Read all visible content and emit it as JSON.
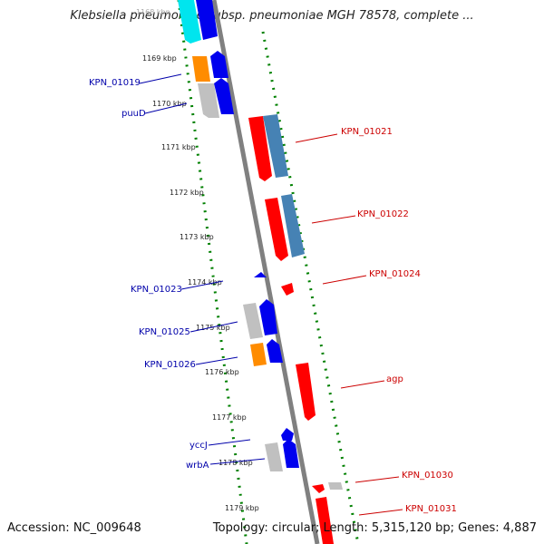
{
  "title": "Klebsiella pneumoniae subsp. pneumoniae MGH 78578, complete ...",
  "accession": "Accession: NC_009648",
  "summary": "Topology: circular; Length: 5,315,120 bp; Genes: 4,887",
  "colors": {
    "red": "#ff0000",
    "steelblue": "#4682b4",
    "blue": "#0000ee",
    "gray": "#c8c8c8",
    "orange": "#ff8c00",
    "cyan": "#00e5ee",
    "scale_green": "#008000",
    "label_red": "#cc0000",
    "label_blue": "#0000aa"
  },
  "kbp_ticks": [
    {
      "label": "1168 kbp",
      "ref": 1168
    },
    {
      "label": "1169 kbp",
      "ref": 1169
    },
    {
      "label": "1170 kbp",
      "ref": 1170
    },
    {
      "label": "1171 kbp",
      "ref": 1171
    },
    {
      "label": "1172 kbp",
      "ref": 1172
    },
    {
      "label": "1173 kbp",
      "ref": 1173
    },
    {
      "label": "1174 kbp",
      "ref": 1174
    },
    {
      "label": "1175 kbp",
      "ref": 1175
    },
    {
      "label": "1176 kbp",
      "ref": 1176
    },
    {
      "label": "1177 kbp",
      "ref": 1177
    },
    {
      "label": "1178 kbp",
      "ref": 1178
    },
    {
      "label": "1179 kbp",
      "ref": 1179
    }
  ],
  "gene_labels_right": [
    "KPN_01021",
    "KPN_01022",
    "KPN_01024",
    "agp",
    "KPN_01030",
    "KPN_01031"
  ],
  "gene_labels_left": [
    "KPN_01019",
    "puuD",
    "KPN_01023",
    "KPN_01025",
    "KPN_01026",
    "yccJ",
    "wrbA"
  ]
}
